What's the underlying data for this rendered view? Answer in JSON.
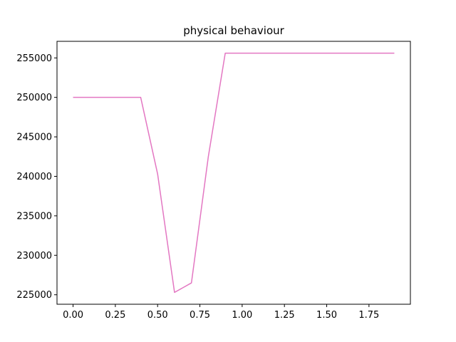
{
  "chart_data": {
    "type": "line",
    "title": "physical behaviour",
    "xlabel": "",
    "ylabel": "",
    "xlim": [
      -0.095,
      1.995
    ],
    "ylim": [
      223800,
      257100
    ],
    "xticks": [
      0.0,
      0.25,
      0.5,
      0.75,
      1.0,
      1.25,
      1.5,
      1.75
    ],
    "xtick_labels": [
      "0.00",
      "0.25",
      "0.50",
      "0.75",
      "1.00",
      "1.25",
      "1.50",
      "1.75"
    ],
    "yticks": [
      225000,
      230000,
      235000,
      240000,
      245000,
      250000,
      255000
    ],
    "ytick_labels": [
      "225000",
      "230000",
      "235000",
      "240000",
      "245000",
      "250000",
      "255000"
    ],
    "grid": false,
    "legend": "none",
    "series": [
      {
        "color": "#e377c2",
        "x": [
          0.0,
          0.1,
          0.2,
          0.3,
          0.4,
          0.5,
          0.6,
          0.7,
          0.8,
          0.9,
          1.0,
          1.1,
          1.2,
          1.3,
          1.4,
          1.5,
          1.6,
          1.7,
          1.8,
          1.9
        ],
        "y": [
          250000,
          250000,
          250000,
          250000,
          250000,
          240300,
          225300,
          226500,
          242500,
          255600,
          255600,
          255600,
          255600,
          255600,
          255600,
          255600,
          255600,
          255600,
          255600,
          255600
        ]
      }
    ]
  }
}
